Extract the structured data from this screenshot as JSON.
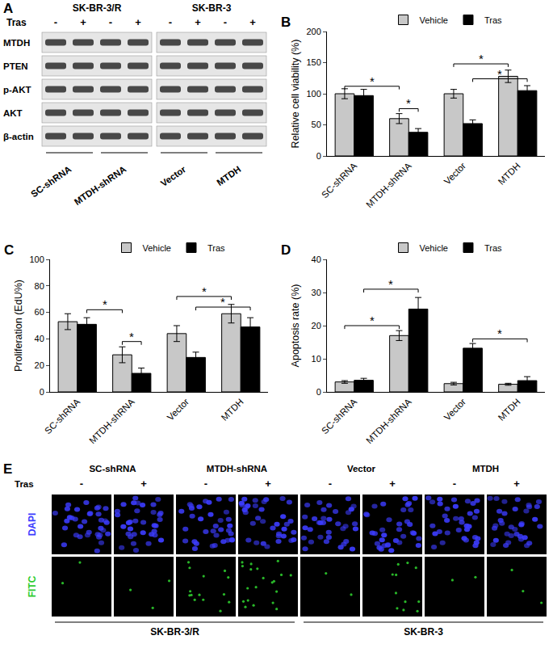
{
  "panel_A": {
    "label": "A",
    "cell_lines": [
      "SK-BR-3/R",
      "SK-BR-3"
    ],
    "treatment_label": "Tras",
    "treatment_signs": [
      "-",
      "+",
      "-",
      "+",
      "-",
      "+",
      "-",
      "+"
    ],
    "proteins": [
      "MTDH",
      "PTEN",
      "p-AKT",
      "AKT",
      "β-actin"
    ],
    "groups": [
      "SC-shRNA",
      "MTDH-shRNA",
      "Vector",
      "MTDH"
    ]
  },
  "chart_data": [
    {
      "panel": "B",
      "type": "bar",
      "y_label": "Relative cell viability (%)",
      "categories": [
        "SC-shRNA",
        "MTDH-shRNA",
        "Vector",
        "MTDH"
      ],
      "series": [
        {
          "name": "Vehicle",
          "color": "#c8c8c8",
          "values": [
            100,
            60,
            100,
            128
          ],
          "errors": [
            8,
            8,
            7,
            10
          ]
        },
        {
          "name": "Tras",
          "color": "#000000",
          "values": [
            97,
            38,
            52,
            105
          ],
          "errors": [
            10,
            6,
            6,
            8
          ]
        }
      ],
      "ylim": [
        0,
        200
      ],
      "yticks": [
        0,
        50,
        100,
        150,
        200
      ],
      "legend": "top",
      "significance": [
        {
          "from": [
            0,
            0
          ],
          "to": [
            1,
            0
          ],
          "y": 112,
          "label": "*"
        },
        {
          "from": [
            1,
            0
          ],
          "to": [
            1,
            1
          ],
          "y": 76,
          "label": "*"
        },
        {
          "from": [
            2,
            0
          ],
          "to": [
            3,
            0
          ],
          "y": 148,
          "label": "*"
        },
        {
          "from": [
            2,
            1
          ],
          "to": [
            3,
            1
          ],
          "y": 124,
          "label": "*"
        }
      ]
    },
    {
      "panel": "C",
      "type": "bar",
      "y_label": "Proliferation (EdU%)",
      "categories": [
        "SC-shRNA",
        "MTDH-shRNA",
        "Vector",
        "MTDH"
      ],
      "series": [
        {
          "name": "Vehicle",
          "color": "#c8c8c8",
          "values": [
            53,
            28,
            44,
            59
          ],
          "errors": [
            6,
            6,
            6,
            7
          ]
        },
        {
          "name": "Tras",
          "color": "#000000",
          "values": [
            51,
            14,
            26,
            49
          ],
          "errors": [
            5,
            4,
            4,
            7
          ]
        }
      ],
      "ylim": [
        0,
        100
      ],
      "yticks": [
        0,
        20,
        40,
        60,
        80,
        100
      ],
      "legend": "top",
      "significance": [
        {
          "from": [
            0,
            1
          ],
          "to": [
            1,
            0
          ],
          "y": 62,
          "label": "*"
        },
        {
          "from": [
            1,
            0
          ],
          "to": [
            1,
            1
          ],
          "y": 38,
          "label": "*"
        },
        {
          "from": [
            2,
            0
          ],
          "to": [
            3,
            0
          ],
          "y": 72,
          "label": "*"
        },
        {
          "from": [
            2,
            1
          ],
          "to": [
            3,
            1
          ],
          "y": 64,
          "label": "*"
        }
      ]
    },
    {
      "panel": "D",
      "type": "bar",
      "y_label": "Apoptosis rate (%)",
      "categories": [
        "SC-shRNA",
        "MTDH-shRNA",
        "Vector",
        "MTDH"
      ],
      "series": [
        {
          "name": "Vehicle",
          "color": "#c8c8c8",
          "values": [
            3,
            17,
            2.5,
            2.3
          ],
          "errors": [
            0.4,
            1.5,
            0.4,
            0.3
          ]
        },
        {
          "name": "Tras",
          "color": "#000000",
          "values": [
            3.5,
            25,
            13.2,
            3.4
          ],
          "errors": [
            0.6,
            3.5,
            1.4,
            1.2
          ]
        }
      ],
      "ylim": [
        0,
        40
      ],
      "yticks": [
        0,
        10,
        20,
        30,
        40
      ],
      "legend": "top",
      "significance": [
        {
          "from": [
            0,
            0
          ],
          "to": [
            1,
            0
          ],
          "y": 20,
          "label": "*"
        },
        {
          "from": [
            0,
            1
          ],
          "to": [
            1,
            1
          ],
          "y": 31,
          "label": "*"
        },
        {
          "from": [
            2,
            1
          ],
          "to": [
            3,
            1
          ],
          "y": 16,
          "label": "*"
        }
      ]
    }
  ],
  "panel_E": {
    "label": "E",
    "groups": [
      "SC-shRNA",
      "MTDH-shRNA",
      "Vector",
      "MTDH"
    ],
    "treatment_label": "Tras",
    "treatment_signs": [
      "-",
      "+",
      "-",
      "+",
      "-",
      "+",
      "-",
      "+"
    ],
    "channels": [
      {
        "name": "DAPI",
        "color": "#3c3cff"
      },
      {
        "name": "FITC",
        "color": "#2ecc2e"
      }
    ],
    "cell_lines": [
      "SK-BR-3/R",
      "SK-BR-3"
    ]
  }
}
